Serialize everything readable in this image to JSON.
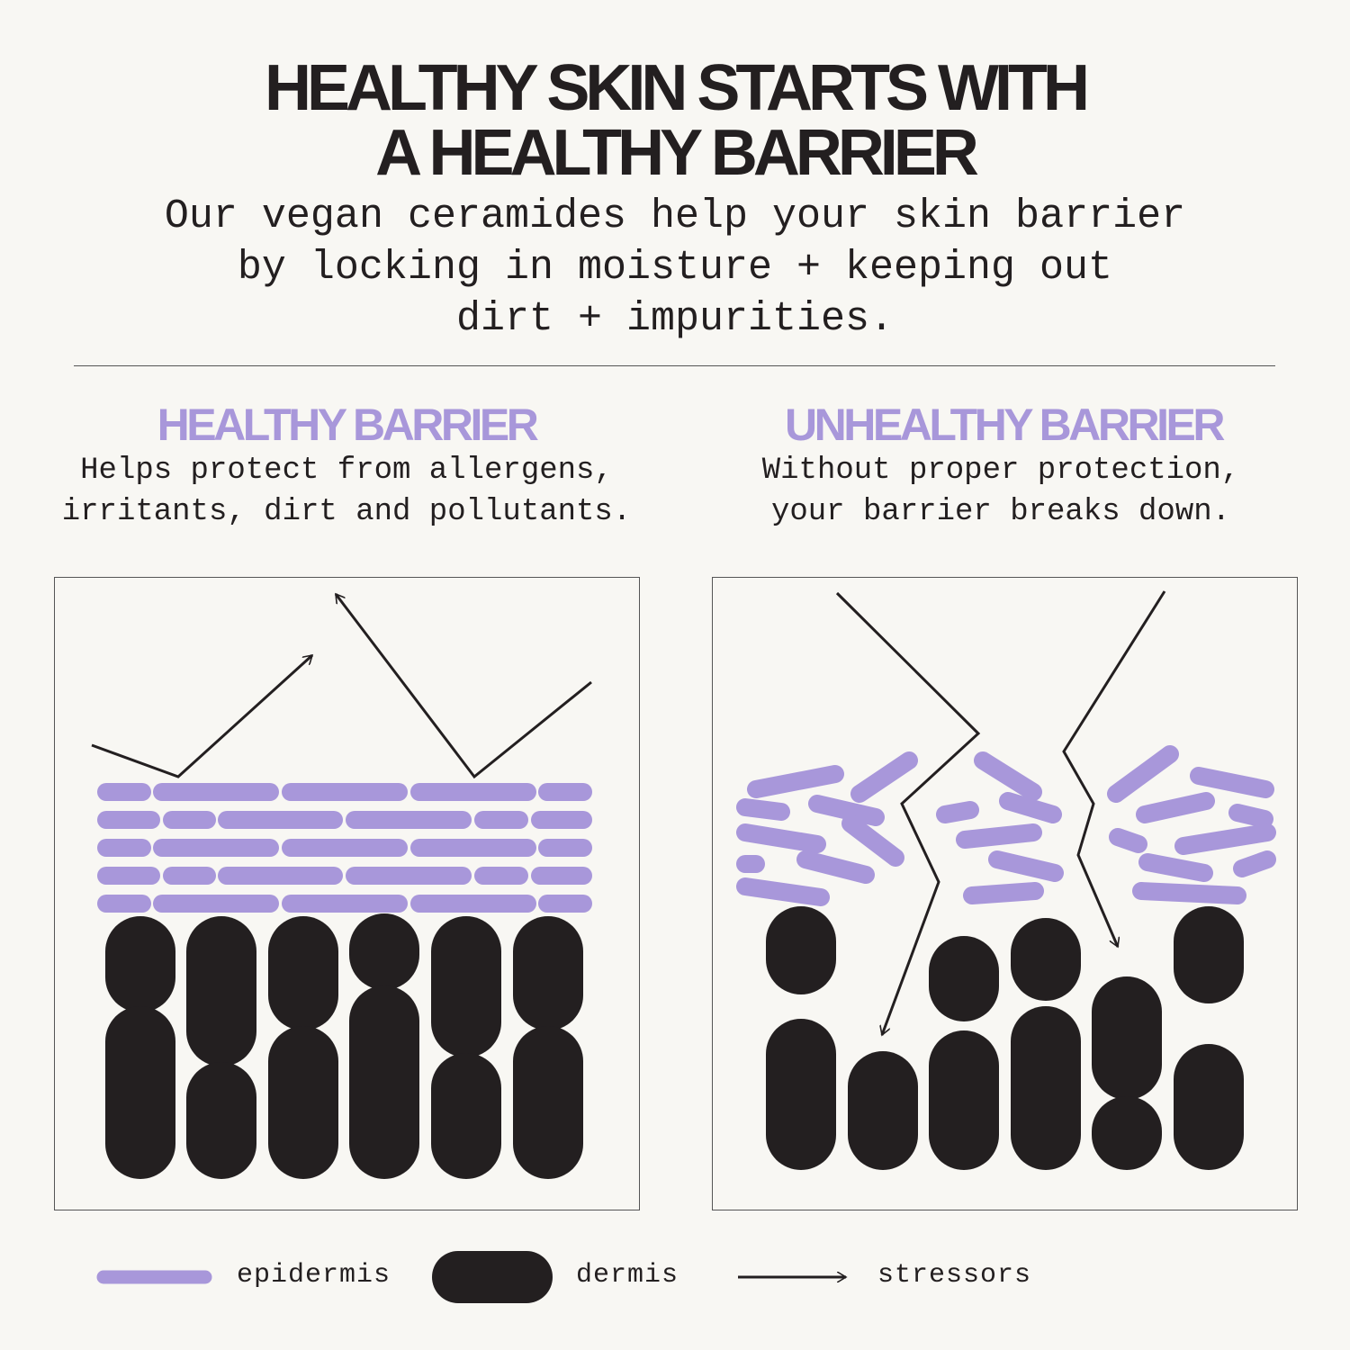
{
  "header": {
    "title_line1": "HEALTHY SKIN STARTS WITH",
    "title_line2": "A HEALTHY BARRIER",
    "subtitle": "Our vegan ceramides help your skin barrier\nby locking in moisture + keeping out\ndirt + impurities."
  },
  "healthy": {
    "heading": "HEALTHY BARRIER",
    "description": "Helps protect from allergens,\nirritants, dirt and pollutants."
  },
  "unhealthy": {
    "heading": "UNHEALTHY BARRIER",
    "description": "Without proper protection,\nyour barrier breaks down."
  },
  "legend": {
    "epidermis": "epidermis",
    "dermis": "dermis",
    "stressors": "stressors"
  },
  "colors": {
    "background": "#f8f7f3",
    "epidermis": "#a897da",
    "dermis": "#231f20",
    "heading": "#a897da"
  }
}
